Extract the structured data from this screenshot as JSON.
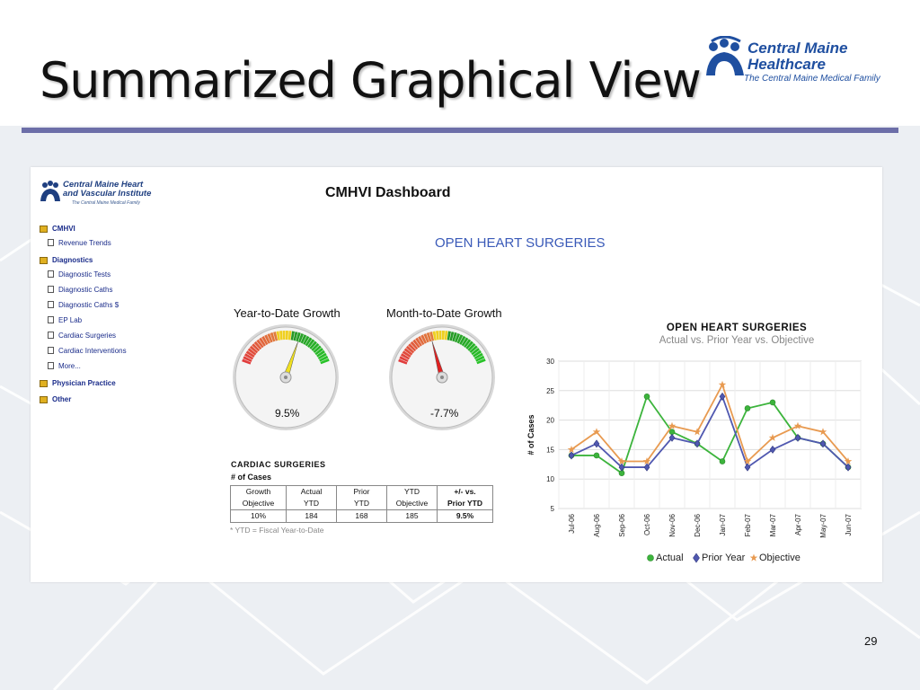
{
  "slide": {
    "title": "Summarized Graphical View",
    "page_number": "29"
  },
  "brand": {
    "name_line1": "Central Maine",
    "name_line2": "Healthcare",
    "tagline": "The Central Maine Medical Family",
    "color": "#1f4fa0"
  },
  "sidebar": {
    "logo_line1": "Central Maine Heart",
    "logo_line2": "and Vascular Institute",
    "logo_line3": "The Central Maine Medical Family",
    "sections": [
      {
        "label": "CMHVI",
        "items": [
          "Revenue Trends"
        ]
      },
      {
        "label": "Diagnostics",
        "items": [
          "Diagnostic Tests",
          "Diagnostic Caths",
          "Diagnostic Caths $",
          "EP Lab",
          "Cardiac Surgeries",
          "Cardiac Interventions",
          "More..."
        ]
      },
      {
        "label": "Physician Practice",
        "items": []
      },
      {
        "label": "Other",
        "items": []
      }
    ]
  },
  "dashboard": {
    "title": "CMHVI Dashboard",
    "subtitle": "OPEN HEART SURGERIES"
  },
  "gauges": [
    {
      "label": "Year-to-Date Growth",
      "value_text": "9.5%",
      "value": 9.5
    },
    {
      "label": "Month-to-Date Growth",
      "value_text": "-7.7%",
      "value": -7.7
    }
  ],
  "table": {
    "title": "CARDIAC SURGERIES",
    "subtitle": "# of Cases",
    "headers": [
      [
        "Growth",
        "Objective"
      ],
      [
        "Actual",
        "YTD"
      ],
      [
        "Prior",
        "YTD"
      ],
      [
        "YTD",
        "Objective"
      ],
      [
        "+/- vs.",
        "Prior YTD"
      ]
    ],
    "row": [
      "10%",
      "184",
      "168",
      "185",
      "9.5%"
    ],
    "footnote": "* YTD = Fiscal Year-to-Date"
  },
  "colors": {
    "actual": "#3cb43c",
    "prior": "#5058b0",
    "objective": "#e89a50"
  },
  "chart_data": {
    "type": "line",
    "title": "OPEN HEART SURGERIES",
    "subtitle": "Actual vs. Prior Year vs. Objective",
    "xlabel": "",
    "ylabel": "# of Cases",
    "ylim": [
      5,
      30
    ],
    "yticks": [
      5,
      10,
      15,
      20,
      25,
      30
    ],
    "grid": true,
    "legend": "bottom",
    "categories": [
      "Jul-06",
      "Aug-06",
      "Sep-06",
      "Oct-06",
      "Nov-06",
      "Dec-06",
      "Jan-07",
      "Feb-07",
      "Mar-07",
      "Apr-07",
      "May-07",
      "Jun-07"
    ],
    "series": [
      {
        "name": "Actual",
        "values": [
          14,
          14,
          11,
          24,
          18,
          16,
          13,
          22,
          23,
          17,
          16,
          12
        ]
      },
      {
        "name": "Prior Year",
        "values": [
          14,
          16,
          12,
          12,
          17,
          16,
          24,
          12,
          15,
          17,
          16,
          12
        ]
      },
      {
        "name": "Objective",
        "values": [
          15,
          18,
          13,
          13,
          19,
          18,
          26,
          13,
          17,
          19,
          18,
          13
        ]
      }
    ]
  }
}
